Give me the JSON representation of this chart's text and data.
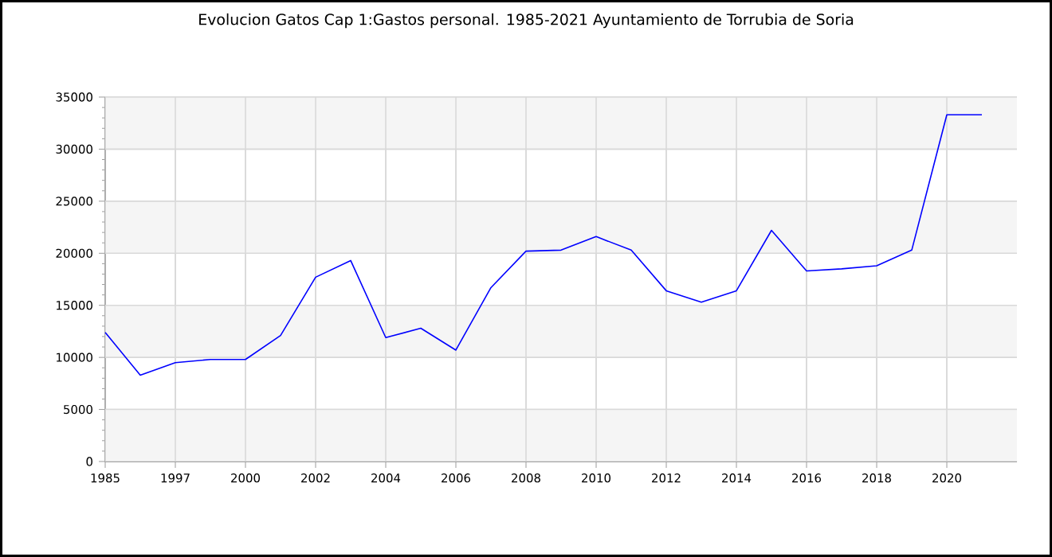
{
  "chart_data": {
    "type": "line",
    "title": "Evolucion Gatos Cap 1:Gastos personal. 1985-2021 Ayuntamiento de Torrubia de Soria",
    "categories": [
      "1985",
      null,
      "1997",
      null,
      "2000",
      null,
      "2002",
      null,
      "2004",
      null,
      "2006",
      null,
      "2008",
      null,
      "2010",
      null,
      "2012",
      null,
      "2014",
      null,
      "2016",
      null,
      "2018",
      null,
      "2020",
      null
    ],
    "series": [
      {
        "color": "#0000ff",
        "values": [
          12400,
          8300,
          9500,
          9800,
          9800,
          12100,
          17700,
          19300,
          11900,
          12800,
          10700,
          16700,
          20200,
          20300,
          21600,
          20300,
          16400,
          15300,
          16400,
          22200,
          18300,
          18500,
          18800,
          20300,
          33300,
          33300
        ]
      }
    ],
    "ylim": [
      0,
      35000
    ],
    "yticks": [
      0,
      5000,
      10000,
      15000,
      20000,
      25000,
      30000,
      35000
    ],
    "grid": true,
    "marker": "none",
    "line_style": "solid"
  }
}
